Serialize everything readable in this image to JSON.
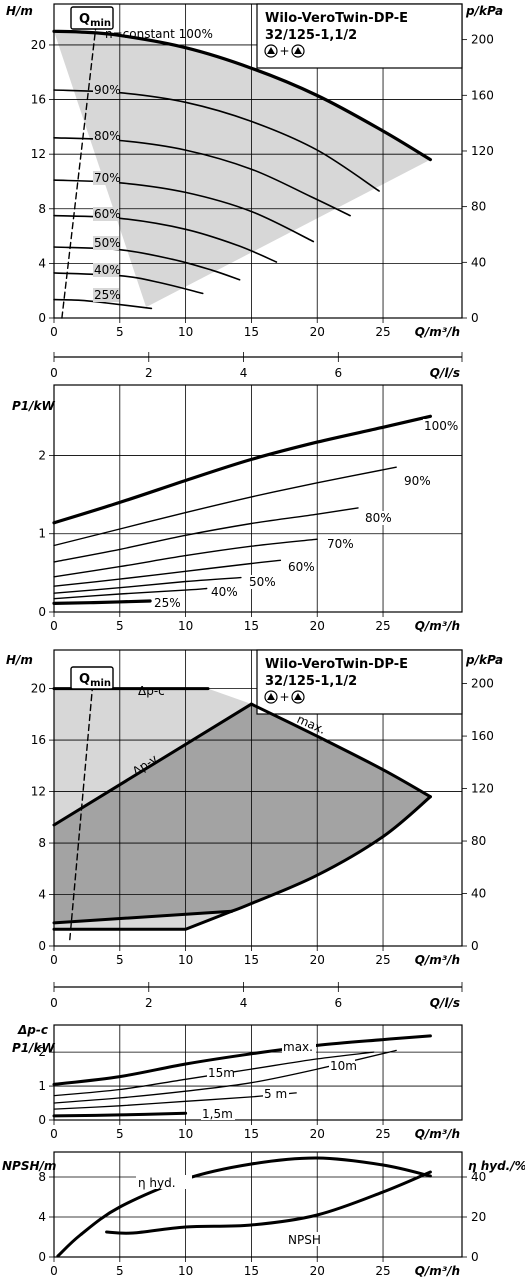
{
  "colors": {
    "envelope_light": "#d7d7d7",
    "envelope_dark": "#a3a3a3",
    "line": "#000000",
    "background": "#ffffff"
  },
  "product": {
    "name": "Wilo-VeroTwin-DP-E",
    "model": "32/125-1,1/2",
    "mode_symbol": "▲+▲"
  },
  "qmin_label": "Q",
  "qmin_sub": "min",
  "chart_data": [
    {
      "id": "head-speed-curves",
      "type": "line",
      "xlabel": "Q/m³/h",
      "ylabel": "H/m",
      "y2label": "p/kPa",
      "xlim": [
        0,
        31
      ],
      "ylim": [
        0,
        23
      ],
      "y2lim": [
        0,
        225.6
      ],
      "x_ticks": [
        "0",
        "5",
        "10",
        "15",
        "20",
        "25"
      ],
      "y_ticks": [
        "0",
        "4",
        "8",
        "12",
        "16",
        "20"
      ],
      "y2_ticks": [
        "0",
        "40",
        "80",
        "120",
        "160",
        "200"
      ],
      "qmin_line": {
        "x": [
          0.6,
          3.2
        ],
        "y": [
          0.0,
          21.5
        ]
      },
      "envelope": {
        "x": [
          0,
          5,
          10,
          15,
          20,
          25,
          28.6,
          7
        ],
        "y": [
          21.0,
          20.7,
          19.8,
          18.3,
          16.3,
          13.7,
          11.6,
          0.8
        ]
      },
      "series": [
        {
          "name": "n=constant 100%",
          "x": [
            0,
            2,
            5,
            10,
            15,
            20,
            25,
            28.6
          ],
          "y": [
            21.0,
            20.95,
            20.7,
            19.8,
            18.3,
            16.3,
            13.7,
            11.6
          ]
        },
        {
          "name": "90%",
          "x": [
            0,
            5,
            10,
            15,
            20,
            24.7
          ],
          "y": [
            16.7,
            16.5,
            15.8,
            14.4,
            12.3,
            9.3
          ]
        },
        {
          "name": "80%",
          "x": [
            0,
            5,
            10,
            15,
            19.5,
            22.5
          ],
          "y": [
            13.2,
            13.0,
            12.3,
            10.9,
            8.9,
            7.5
          ]
        },
        {
          "name": "70%",
          "x": [
            0,
            5,
            10,
            15,
            19.7
          ],
          "y": [
            10.1,
            9.9,
            9.2,
            7.8,
            5.6
          ]
        },
        {
          "name": "60%",
          "x": [
            0,
            5,
            10,
            14,
            16.9
          ],
          "y": [
            7.5,
            7.3,
            6.5,
            5.3,
            4.1
          ]
        },
        {
          "name": "50%",
          "x": [
            0,
            5,
            9,
            12,
            14.1
          ],
          "y": [
            5.2,
            5.0,
            4.3,
            3.5,
            2.8
          ]
        },
        {
          "name": "40%",
          "x": [
            0,
            5,
            8,
            11.3
          ],
          "y": [
            3.3,
            3.1,
            2.6,
            1.8
          ]
        },
        {
          "name": "25%",
          "x": [
            0,
            2,
            4,
            7.4
          ],
          "y": [
            1.35,
            1.3,
            1.1,
            0.7
          ]
        }
      ],
      "annotations": [
        "n=constant 100%",
        "90%",
        "80%",
        "70%",
        "60%",
        "50%",
        "40%",
        "25%"
      ]
    },
    {
      "id": "flow-ls-axis-1",
      "type": "line",
      "xlabel": "Q/l/s",
      "xlim": [
        0,
        8.61
      ],
      "x_ticks": [
        "0",
        "2",
        "4",
        "6"
      ]
    },
    {
      "id": "power-speed-curves",
      "type": "line",
      "xlabel": "Q/m³/h",
      "ylabel": "P1/kW",
      "xlim": [
        0,
        31
      ],
      "ylim": [
        0,
        2.9
      ],
      "x_ticks": [
        "0",
        "5",
        "10",
        "15",
        "20",
        "25"
      ],
      "y_ticks": [
        "0",
        "1",
        "2"
      ],
      "series": [
        {
          "name": "100%",
          "x": [
            0,
            5,
            10,
            15,
            20,
            25,
            28.6
          ],
          "y": [
            1.14,
            1.4,
            1.68,
            1.95,
            2.17,
            2.36,
            2.5
          ]
        },
        {
          "name": "90%",
          "x": [
            0,
            5,
            10,
            15,
            20,
            26
          ],
          "y": [
            0.85,
            1.06,
            1.27,
            1.47,
            1.65,
            1.85
          ]
        },
        {
          "name": "80%",
          "x": [
            0,
            5,
            10,
            15,
            20,
            23.1
          ],
          "y": [
            0.64,
            0.8,
            0.98,
            1.13,
            1.25,
            1.33
          ]
        },
        {
          "name": "70%",
          "x": [
            0,
            5,
            10,
            15,
            20
          ],
          "y": [
            0.45,
            0.58,
            0.72,
            0.84,
            0.93
          ]
        },
        {
          "name": "60%",
          "x": [
            0,
            5,
            10,
            15,
            17.2
          ],
          "y": [
            0.33,
            0.42,
            0.52,
            0.62,
            0.66
          ]
        },
        {
          "name": "50%",
          "x": [
            0,
            5,
            10,
            14.2
          ],
          "y": [
            0.24,
            0.31,
            0.39,
            0.44
          ]
        },
        {
          "name": "40%",
          "x": [
            0,
            5,
            10,
            11.6
          ],
          "y": [
            0.17,
            0.23,
            0.28,
            0.3
          ]
        },
        {
          "name": "25%",
          "x": [
            0,
            3,
            7.3
          ],
          "y": [
            0.11,
            0.12,
            0.14
          ]
        }
      ],
      "annotations": [
        "100%",
        "90%",
        "80%",
        "70%",
        "60%",
        "50%",
        "40%",
        "25%"
      ]
    },
    {
      "id": "head-control-modes",
      "type": "area",
      "xlabel": "Q/m³/h",
      "ylabel": "H/m",
      "y2label": "p/kPa",
      "xlim": [
        0,
        31
      ],
      "ylim": [
        0,
        23
      ],
      "y2lim": [
        0,
        225.6
      ],
      "x_ticks": [
        "0",
        "5",
        "10",
        "15",
        "20",
        "25"
      ],
      "y_ticks": [
        "0",
        "4",
        "8",
        "12",
        "16",
        "20"
      ],
      "y2_ticks": [
        "0",
        "40",
        "80",
        "120",
        "160",
        "200"
      ],
      "qmin_line": {
        "x": [
          1.2,
          3.0
        ],
        "y": [
          0.5,
          21.0
        ]
      },
      "series": [
        {
          "name": "Δp-c",
          "x": [
            0,
            11.7,
            15,
            20,
            25,
            28.6,
            25,
            20,
            15,
            13.5,
            10,
            0
          ],
          "y": [
            20.0,
            20.0,
            18.8,
            16.3,
            13.7,
            11.6,
            8.5,
            5.5,
            3.3,
            2.7,
            1.3,
            1.3
          ]
        },
        {
          "name": "Δp-v",
          "x": [
            0,
            15,
            20,
            25,
            28.6,
            25,
            20,
            15,
            13.5,
            0
          ],
          "y": [
            9.4,
            18.8,
            16.3,
            13.7,
            11.6,
            8.5,
            5.5,
            3.3,
            2.7,
            1.8
          ]
        },
        {
          "name": "max.",
          "x": [
            15,
            20,
            25,
            28.6
          ],
          "y": [
            18.8,
            16.3,
            13.7,
            11.6
          ]
        }
      ],
      "annotations": [
        "Δp-c",
        "Δp-v",
        "max."
      ]
    },
    {
      "id": "flow-ls-axis-2",
      "type": "line",
      "xlabel": "Q/l/s",
      "xlim": [
        0,
        8.61
      ],
      "x_ticks": [
        "0",
        "2",
        "4",
        "6"
      ]
    },
    {
      "id": "power-control-modes",
      "type": "line",
      "title": "Δp-c",
      "xlabel": "Q/m³/h",
      "ylabel": "P1/kW",
      "xlim": [
        0,
        31
      ],
      "ylim": [
        0,
        2.8
      ],
      "x_ticks": [
        "0",
        "5",
        "10",
        "15",
        "20",
        "25"
      ],
      "y_ticks": [
        "0",
        "1",
        "2"
      ],
      "series": [
        {
          "name": "max.",
          "x": [
            0,
            5,
            10,
            15,
            20,
            25,
            28.6
          ],
          "y": [
            1.05,
            1.28,
            1.65,
            1.95,
            2.2,
            2.37,
            2.48
          ]
        },
        {
          "name": "15m",
          "x": [
            0,
            5,
            10,
            15,
            20,
            24.3
          ],
          "y": [
            0.72,
            0.9,
            1.2,
            1.5,
            1.8,
            2.0
          ]
        },
        {
          "name": "10m",
          "x": [
            0,
            5,
            10,
            15,
            20,
            26
          ],
          "y": [
            0.5,
            0.65,
            0.85,
            1.1,
            1.5,
            2.05
          ]
        },
        {
          "name": "5 m",
          "x": [
            0,
            5,
            10,
            15,
            18.4
          ],
          "y": [
            0.32,
            0.42,
            0.55,
            0.68,
            0.8
          ]
        },
        {
          "name": "1,5m",
          "x": [
            0,
            5,
            10
          ],
          "y": [
            0.12,
            0.15,
            0.2
          ]
        }
      ],
      "annotations": [
        "max.",
        "15m",
        "10m",
        "5 m",
        "1,5m"
      ]
    },
    {
      "id": "npsh-efficiency",
      "type": "line",
      "xlabel": "Q/m³/h",
      "ylabel": "NPSH/m",
      "y2label": "η hyd./%",
      "xlim": [
        0,
        31
      ],
      "ylim": [
        0,
        10.5
      ],
      "y2lim": [
        0,
        52.5
      ],
      "x_ticks": [
        "0",
        "5",
        "10",
        "15",
        "20",
        "25"
      ],
      "y_ticks": [
        "0",
        "4",
        "8"
      ],
      "y2_ticks": [
        "0",
        "20",
        "40"
      ],
      "series": [
        {
          "name": "η hyd.",
          "axis": "right",
          "x": [
            0.3,
            2,
            5,
            10,
            15,
            20,
            25,
            28.6
          ],
          "y": [
            0.5,
            11.0,
            25.0,
            39.0,
            46.5,
            49.5,
            46.0,
            40.5
          ]
        },
        {
          "name": "NPSH",
          "axis": "left",
          "x": [
            4,
            6,
            10,
            15,
            20,
            25,
            28.6
          ],
          "y": [
            2.5,
            2.4,
            3.0,
            3.2,
            4.2,
            6.5,
            8.5
          ]
        }
      ],
      "annotations": [
        "η hyd.",
        "NPSH"
      ]
    }
  ]
}
